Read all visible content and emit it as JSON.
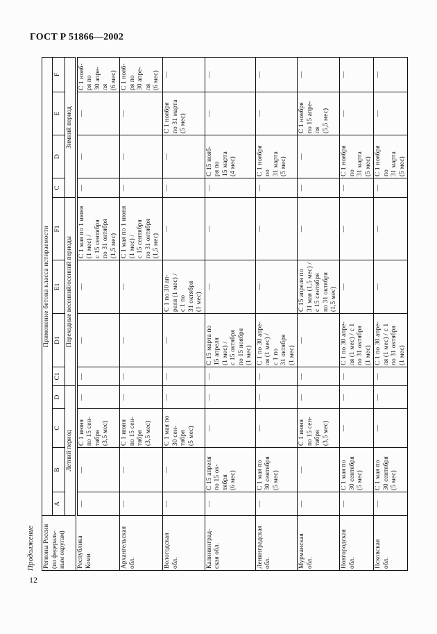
{
  "document": {
    "title": "ГОСТ Р 51866—2002",
    "continuation": "Продолжение",
    "page_number": "12"
  },
  "table": {
    "region_header": "Регионы России\n(по федераль-\nным округам)",
    "group_header": "Применение бетона класса истираемости",
    "columns": [
      "A",
      "B",
      "C",
      "D",
      "C1",
      "D1",
      "E1",
      "F1",
      "C",
      "D",
      "E",
      "F"
    ],
    "periods": {
      "summer": "Летний период",
      "transitional": "Переходные весенний/осенний периоды",
      "winter": "Зимний период"
    },
    "rows": [
      {
        "region": "Республика\nКоми",
        "cells": [
          "—",
          "—",
          "С 1 июня\nпо 15 сен-\nтября\n(3,5 мес)",
          "—",
          "—",
          "—",
          "—",
          "С 1 мая по 1 июня\n(1 мес) /\nс 15 сентября\nпо 31 октября\n(1,5 мес)",
          "—",
          "—",
          "—",
          "С 1 нояб-\nря по\n30 апре-\nля\n(6 мес)"
        ]
      },
      {
        "region": "Архангельская\nобл.",
        "cells": [
          "—",
          "—",
          "С 1 июня\nпо 15 сен-\nтября\n(3,5 мес)",
          "—",
          "—",
          "—",
          "—",
          "С 1 мая по 1 июня\n(1 мес) /\nс 15 сентября\nпо 31 октября\n(1,5 мес)",
          "—",
          "—",
          "—",
          "С 1 нояб-\nря по\n30 апре-\nля\n(6 мес)"
        ]
      },
      {
        "region": "Вологодская\nобл.",
        "cells": [
          "—",
          "—",
          "С 1 мая по\n30 сен-\nтября\n(5 мес)",
          "—",
          "—",
          "—",
          "С 1 по 30 ап-\nреля (1 мес) /\nс 1 по\n31 октября\n(1 мес)",
          "—",
          "—",
          "—",
          "С 1 ноября\nпо 31 марта\n(5 мес)",
          "—"
        ]
      },
      {
        "region": "Калининград-\nская обл.",
        "cells": [
          "—",
          "С 15 апреля\nпо 15 ок-\nтября\n(6 мес)",
          "—",
          "—",
          "—",
          "С 15 марта по\n15 апреля\n(1 мес) /\nс 15 октября\nпо 15 ноября\n(1 мес)",
          "—",
          "—",
          "—",
          "С 15 нояб-\nря по\n15 марта\n(4 мес)",
          "—",
          "—"
        ]
      },
      {
        "region": "Ленинградская\nобл.",
        "cells": [
          "—",
          "С 1 мая по\n30 сентября\n(5 мес)",
          "—",
          "—",
          "—",
          "С 1 по 30 апре-\nля (1 мес) /\nс 1 по\n31 октября\n(1 мес)",
          "—",
          "—",
          "—",
          "С 1 ноября\nпо\n31 марта\n(5 мес)",
          "—",
          "—"
        ]
      },
      {
        "region": "Мурманская\nобл.",
        "cells": [
          "—",
          "—",
          "С 1 июня\nпо 15 сен-\nтября\n(3,5 мес)",
          "—",
          "—",
          "—",
          "С 15 апреля по\n31 мая (1,5 мес) /\nс 15 сентября\nпо 31 октября\n(1,5 мес)",
          "—",
          "—",
          "—",
          "С 1 ноября\nпо 15 апре-\nля\n(5,5 мес)",
          "—"
        ]
      },
      {
        "region": "Новгородская\nобл.",
        "cells": [
          "—",
          "С 1 мая по\n30 сентября\n(5 мес)",
          "—",
          "—",
          "—",
          "С 1 по 30 апре-\nля (1 мес) / с 1\nпо 31 октября\n(1 мес)",
          "—",
          "—",
          "—",
          "С 1 ноября\nпо\n31 марта\n(5 мес)",
          "—",
          "—"
        ]
      },
      {
        "region": "Псковская\nобл.",
        "cells": [
          "—",
          "С 1 мая по\n30 сентября\n(5 мес)",
          "—",
          "—",
          "—",
          "С 1 по 30 апре-\nля (1 мес) / с 1\nпо 31 октября\n(1 мес)",
          "—",
          "—",
          "—",
          "С 1 ноября\nпо\n31 марта\n(5 мес)",
          "—",
          "—"
        ]
      }
    ]
  }
}
